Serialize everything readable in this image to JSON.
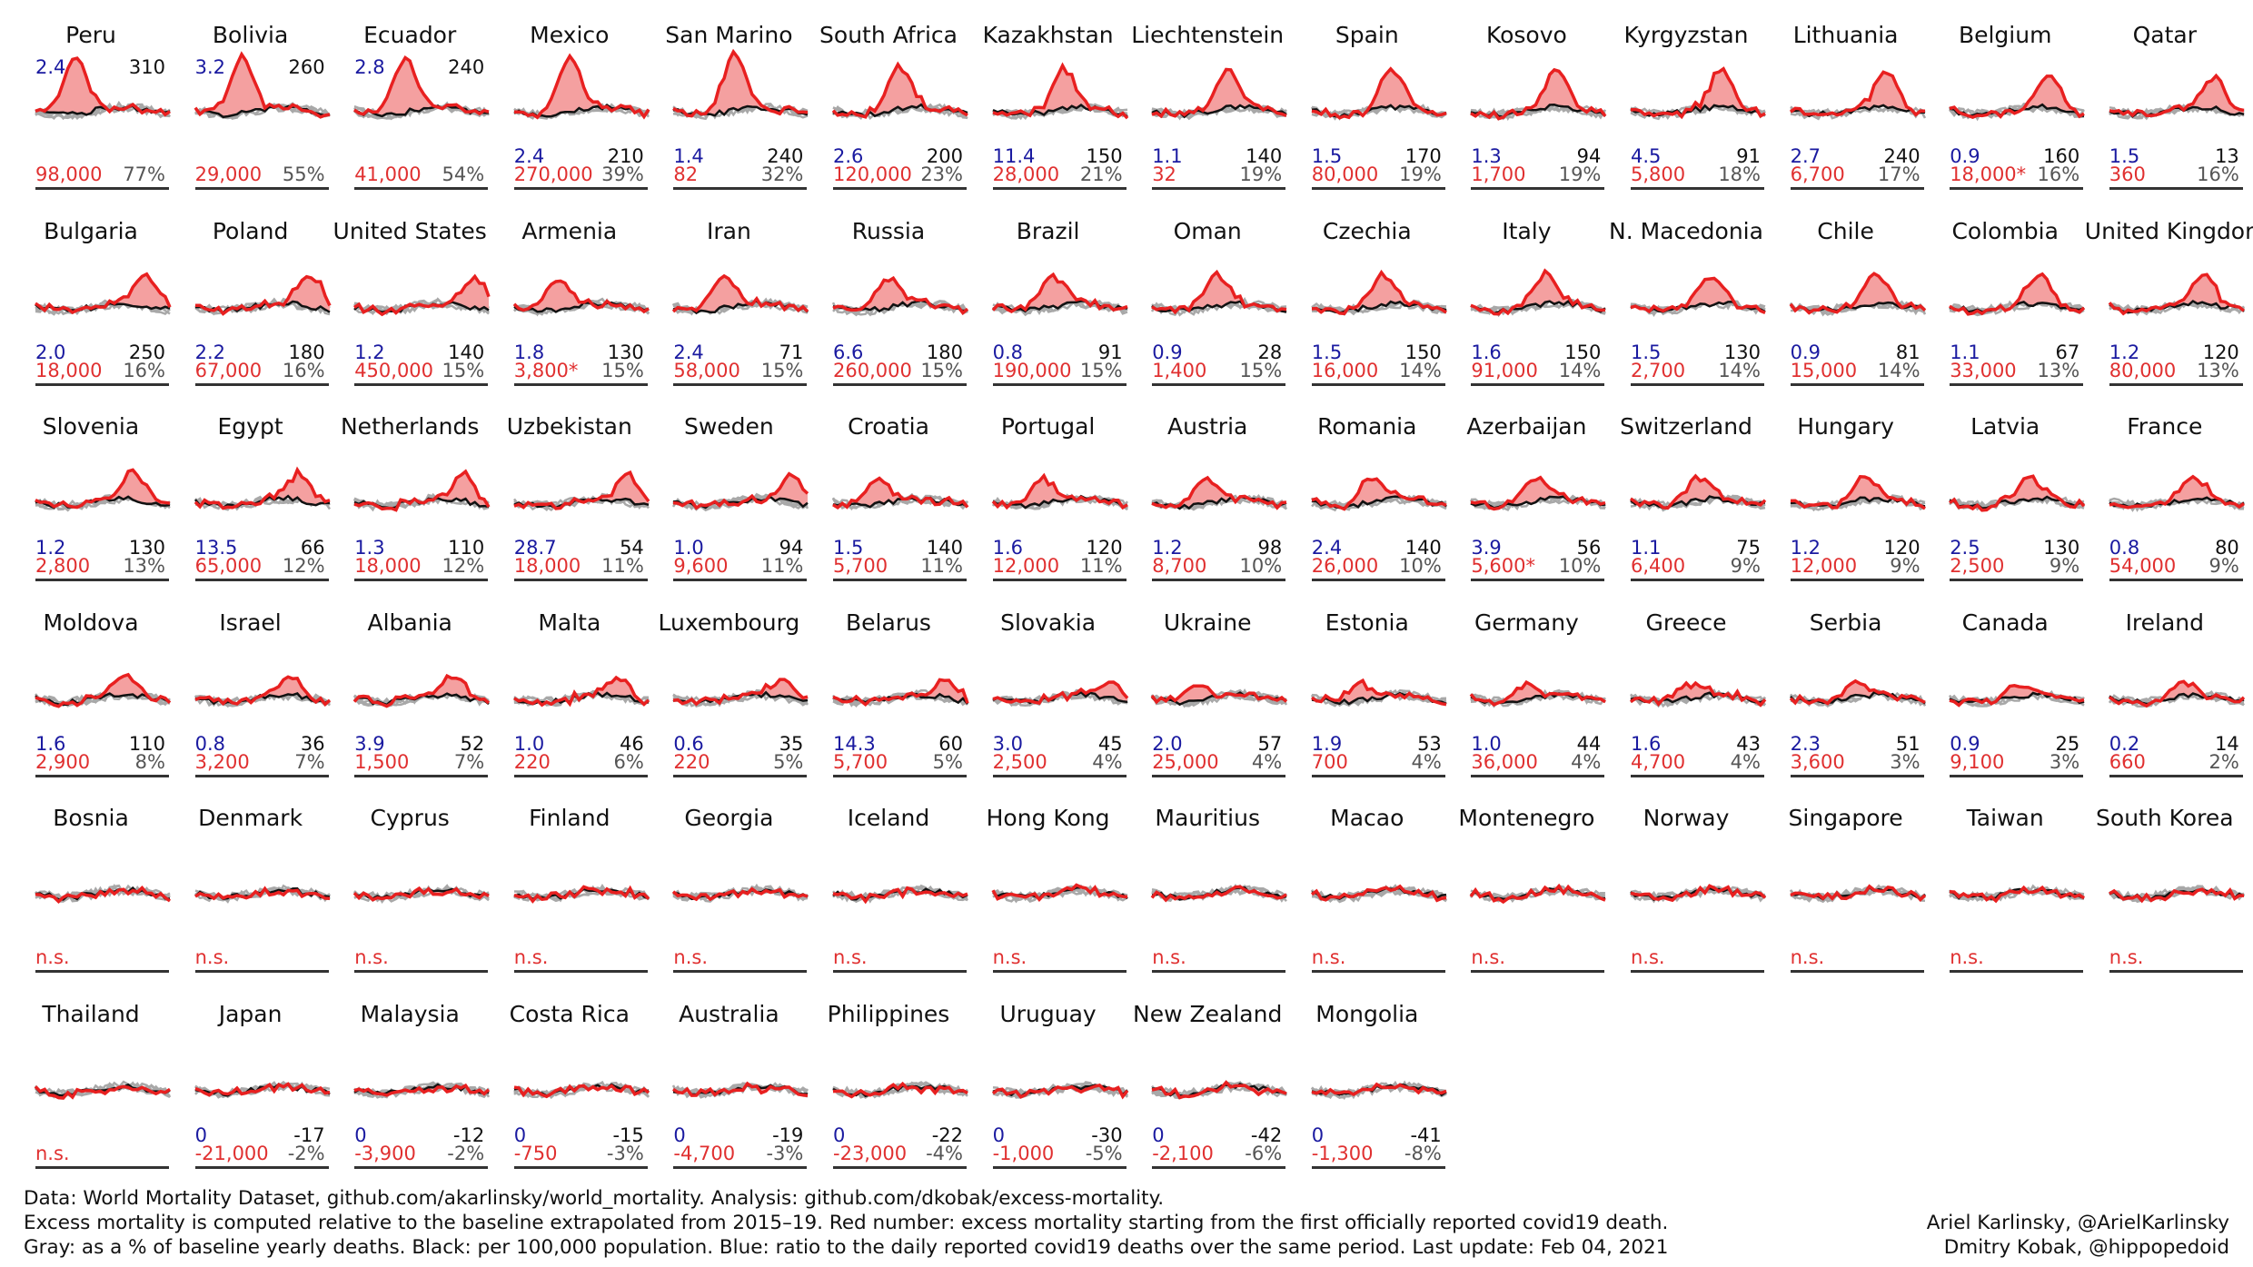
{
  "chart_data": {
    "type": "line",
    "layout": "small-multiples",
    "colors": {
      "excess": "#e82020",
      "excess_fill": "#f4a0a0",
      "baseline_years": "#a8a8a8",
      "last_year": "#111111",
      "covid_deaths": "#b020c0",
      "blue_number": "#1a1aa0",
      "red_number": "#e03030"
    },
    "countries": [
      {
        "name": "Peru",
        "blue": "2.4",
        "black": "310",
        "red": "98,000",
        "gray": "77%"
      },
      {
        "name": "Bolivia",
        "blue": "3.2",
        "black": "260",
        "red": "29,000",
        "gray": "55%"
      },
      {
        "name": "Ecuador",
        "blue": "2.8",
        "black": "240",
        "red": "41,000",
        "gray": "54%"
      },
      {
        "name": "Mexico",
        "blue": "2.4",
        "black": "210",
        "red": "270,000",
        "gray": "39%"
      },
      {
        "name": "San Marino",
        "blue": "1.4",
        "black": "240",
        "red": "82",
        "gray": "32%"
      },
      {
        "name": "South Africa",
        "blue": "2.6",
        "black": "200",
        "red": "120,000",
        "gray": "23%"
      },
      {
        "name": "Kazakhstan",
        "blue": "11.4",
        "black": "150",
        "red": "28,000",
        "gray": "21%"
      },
      {
        "name": "Liechtenstein",
        "blue": "1.1",
        "black": "140",
        "red": "32",
        "gray": "19%"
      },
      {
        "name": "Spain",
        "blue": "1.5",
        "black": "170",
        "red": "80,000",
        "gray": "19%"
      },
      {
        "name": "Kosovo",
        "blue": "1.3",
        "black": "94",
        "red": "1,700",
        "gray": "19%"
      },
      {
        "name": "Kyrgyzstan",
        "blue": "4.5",
        "black": "91",
        "red": "5,800",
        "gray": "18%"
      },
      {
        "name": "Lithuania",
        "blue": "2.7",
        "black": "240",
        "red": "6,700",
        "gray": "17%"
      },
      {
        "name": "Belgium",
        "blue": "0.9",
        "black": "160",
        "red": "18,000*",
        "gray": "16%"
      },
      {
        "name": "Qatar",
        "blue": "1.5",
        "black": "13",
        "red": "360",
        "gray": "16%"
      },
      {
        "name": "Bulgaria",
        "blue": "2.0",
        "black": "250",
        "red": "18,000",
        "gray": "16%"
      },
      {
        "name": "Poland",
        "blue": "2.2",
        "black": "180",
        "red": "67,000",
        "gray": "16%"
      },
      {
        "name": "United States",
        "blue": "1.2",
        "black": "140",
        "red": "450,000",
        "gray": "15%"
      },
      {
        "name": "Armenia",
        "blue": "1.8",
        "black": "130",
        "red": "3,800*",
        "gray": "15%"
      },
      {
        "name": "Iran",
        "blue": "2.4",
        "black": "71",
        "red": "58,000",
        "gray": "15%"
      },
      {
        "name": "Russia",
        "blue": "6.6",
        "black": "180",
        "red": "260,000",
        "gray": "15%"
      },
      {
        "name": "Brazil",
        "blue": "0.8",
        "black": "91",
        "red": "190,000",
        "gray": "15%"
      },
      {
        "name": "Oman",
        "blue": "0.9",
        "black": "28",
        "red": "1,400",
        "gray": "15%"
      },
      {
        "name": "Czechia",
        "blue": "1.5",
        "black": "150",
        "red": "16,000",
        "gray": "14%"
      },
      {
        "name": "Italy",
        "blue": "1.6",
        "black": "150",
        "red": "91,000",
        "gray": "14%"
      },
      {
        "name": "N. Macedonia",
        "blue": "1.5",
        "black": "130",
        "red": "2,700",
        "gray": "14%"
      },
      {
        "name": "Chile",
        "blue": "0.9",
        "black": "81",
        "red": "15,000",
        "gray": "14%"
      },
      {
        "name": "Colombia",
        "blue": "1.1",
        "black": "67",
        "red": "33,000",
        "gray": "13%"
      },
      {
        "name": "United Kingdom",
        "blue": "1.2",
        "black": "120",
        "red": "80,000",
        "gray": "13%"
      },
      {
        "name": "Slovenia",
        "blue": "1.2",
        "black": "130",
        "red": "2,800",
        "gray": "13%"
      },
      {
        "name": "Egypt",
        "blue": "13.5",
        "black": "66",
        "red": "65,000",
        "gray": "12%"
      },
      {
        "name": "Netherlands",
        "blue": "1.3",
        "black": "110",
        "red": "18,000",
        "gray": "12%"
      },
      {
        "name": "Uzbekistan",
        "blue": "28.7",
        "black": "54",
        "red": "18,000",
        "gray": "11%"
      },
      {
        "name": "Sweden",
        "blue": "1.0",
        "black": "94",
        "red": "9,600",
        "gray": "11%"
      },
      {
        "name": "Croatia",
        "blue": "1.5",
        "black": "140",
        "red": "5,700",
        "gray": "11%"
      },
      {
        "name": "Portugal",
        "blue": "1.6",
        "black": "120",
        "red": "12,000",
        "gray": "11%"
      },
      {
        "name": "Austria",
        "blue": "1.2",
        "black": "98",
        "red": "8,700",
        "gray": "10%"
      },
      {
        "name": "Romania",
        "blue": "2.4",
        "black": "140",
        "red": "26,000",
        "gray": "10%"
      },
      {
        "name": "Azerbaijan",
        "blue": "3.9",
        "black": "56",
        "red": "5,600*",
        "gray": "10%"
      },
      {
        "name": "Switzerland",
        "blue": "1.1",
        "black": "75",
        "red": "6,400",
        "gray": "9%"
      },
      {
        "name": "Hungary",
        "blue": "1.2",
        "black": "120",
        "red": "12,000",
        "gray": "9%"
      },
      {
        "name": "Latvia",
        "blue": "2.5",
        "black": "130",
        "red": "2,500",
        "gray": "9%"
      },
      {
        "name": "France",
        "blue": "0.8",
        "black": "80",
        "red": "54,000",
        "gray": "9%"
      },
      {
        "name": "Moldova",
        "blue": "1.6",
        "black": "110",
        "red": "2,900",
        "gray": "8%"
      },
      {
        "name": "Israel",
        "blue": "0.8",
        "black": "36",
        "red": "3,200",
        "gray": "7%"
      },
      {
        "name": "Albania",
        "blue": "3.9",
        "black": "52",
        "red": "1,500",
        "gray": "7%"
      },
      {
        "name": "Malta",
        "blue": "1.0",
        "black": "46",
        "red": "220",
        "gray": "6%"
      },
      {
        "name": "Luxembourg",
        "blue": "0.6",
        "black": "35",
        "red": "220",
        "gray": "5%"
      },
      {
        "name": "Belarus",
        "blue": "14.3",
        "black": "60",
        "red": "5,700",
        "gray": "5%"
      },
      {
        "name": "Slovakia",
        "blue": "3.0",
        "black": "45",
        "red": "2,500",
        "gray": "4%"
      },
      {
        "name": "Ukraine",
        "blue": "2.0",
        "black": "57",
        "red": "25,000",
        "gray": "4%"
      },
      {
        "name": "Estonia",
        "blue": "1.9",
        "black": "53",
        "red": "700",
        "gray": "4%"
      },
      {
        "name": "Germany",
        "blue": "1.0",
        "black": "44",
        "red": "36,000",
        "gray": "4%"
      },
      {
        "name": "Greece",
        "blue": "1.6",
        "black": "43",
        "red": "4,700",
        "gray": "4%"
      },
      {
        "name": "Serbia",
        "blue": "2.3",
        "black": "51",
        "red": "3,600",
        "gray": "3%"
      },
      {
        "name": "Canada",
        "blue": "0.9",
        "black": "25",
        "red": "9,100",
        "gray": "3%"
      },
      {
        "name": "Ireland",
        "blue": "0.2",
        "black": "14",
        "red": "660",
        "gray": "2%"
      },
      {
        "name": "Bosnia",
        "red": "n.s."
      },
      {
        "name": "Denmark",
        "red": "n.s."
      },
      {
        "name": "Cyprus",
        "red": "n.s."
      },
      {
        "name": "Finland",
        "red": "n.s."
      },
      {
        "name": "Georgia",
        "red": "n.s."
      },
      {
        "name": "Iceland",
        "red": "n.s."
      },
      {
        "name": "Hong Kong",
        "red": "n.s."
      },
      {
        "name": "Mauritius",
        "red": "n.s."
      },
      {
        "name": "Macao",
        "red": "n.s."
      },
      {
        "name": "Montenegro",
        "red": "n.s."
      },
      {
        "name": "Norway",
        "red": "n.s."
      },
      {
        "name": "Singapore",
        "red": "n.s."
      },
      {
        "name": "Taiwan",
        "red": "n.s."
      },
      {
        "name": "South Korea",
        "red": "n.s."
      },
      {
        "name": "Thailand",
        "red": "n.s."
      },
      {
        "name": "Japan",
        "blue": "0",
        "black": "-17",
        "red": "-21,000",
        "gray": "-2%"
      },
      {
        "name": "Malaysia",
        "blue": "0",
        "black": "-12",
        "red": "-3,900",
        "gray": "-2%"
      },
      {
        "name": "Costa Rica",
        "blue": "0",
        "black": "-15",
        "red": "-750",
        "gray": "-3%"
      },
      {
        "name": "Australia",
        "blue": "0",
        "black": "-19",
        "red": "-4,700",
        "gray": "-3%"
      },
      {
        "name": "Philippines",
        "blue": "0",
        "black": "-22",
        "red": "-23,000",
        "gray": "-4%"
      },
      {
        "name": "Uruguay",
        "blue": "0",
        "black": "-30",
        "red": "-1,000",
        "gray": "-5%"
      },
      {
        "name": "New Zealand",
        "blue": "0",
        "black": "-42",
        "red": "-2,100",
        "gray": "-6%"
      },
      {
        "name": "Mongolia",
        "blue": "0",
        "black": "-41",
        "red": "-1,300",
        "gray": "-8%"
      }
    ]
  },
  "footer": {
    "line1": "Data: World Mortality Dataset, github.com/akarlinsky/world_mortality. Analysis: github.com/dkobak/excess-mortality.",
    "line2": "Excess mortality is computed relative to the baseline extrapolated from 2015–19. Red number: excess mortality starting from the first officially reported covid19 death.",
    "line3": "Gray: as a % of baseline yearly deaths. Black: per 100,000 population. Blue: ratio to the daily reported covid19 deaths over the same period. Last update: Feb 04, 2021",
    "credit1": "Ariel Karlinsky, @ArielKarlinsky",
    "credit2": "Dmitry Kobak, @hippopedoid"
  }
}
